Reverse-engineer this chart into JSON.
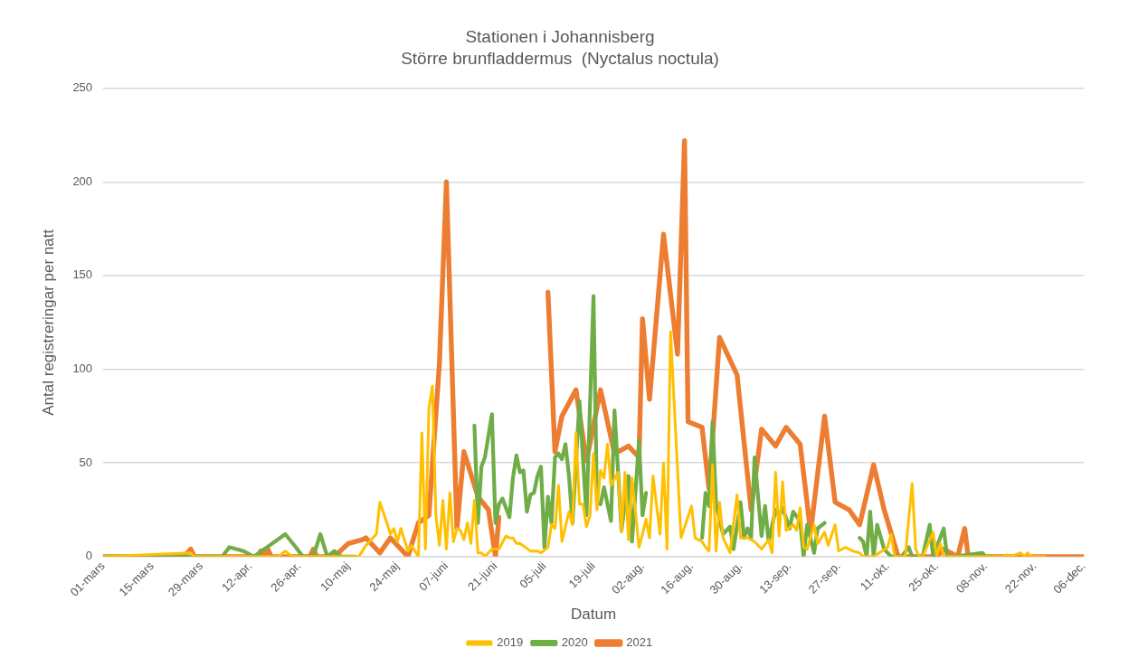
{
  "chart_data": {
    "type": "line",
    "title": "Stationen i Johannisberg",
    "subtitle": "Större brunfladdermus  (Nyctalus noctula)",
    "xlabel": "Datum",
    "ylabel": "Antal registreringar per natt",
    "xlim": [
      "--03-01",
      "--12-06"
    ],
    "ylim": [
      0,
      250
    ],
    "yticks": [
      0,
      50,
      100,
      150,
      200,
      250
    ],
    "xticks": [
      {
        "value": "--03-01",
        "label": "01-mars"
      },
      {
        "value": "--03-15",
        "label": "15-mars"
      },
      {
        "value": "--03-29",
        "label": "29-mars"
      },
      {
        "value": "--04-12",
        "label": "12-apr."
      },
      {
        "value": "--04-26",
        "label": "26-apr."
      },
      {
        "value": "--05-10",
        "label": "10-maj"
      },
      {
        "value": "--05-24",
        "label": "24-maj"
      },
      {
        "value": "--06-07",
        "label": "07-juni"
      },
      {
        "value": "--06-21",
        "label": "21-juni"
      },
      {
        "value": "--07-05",
        "label": "05-juli"
      },
      {
        "value": "--07-19",
        "label": "19-juli"
      },
      {
        "value": "--08-02",
        "label": "02-aug."
      },
      {
        "value": "--08-16",
        "label": "16-aug."
      },
      {
        "value": "--08-30",
        "label": "30-aug."
      },
      {
        "value": "--09-13",
        "label": "13-sep."
      },
      {
        "value": "--09-27",
        "label": "27-sep."
      },
      {
        "value": "--10-11",
        "label": "11-okt."
      },
      {
        "value": "--10-25",
        "label": "25-okt."
      },
      {
        "value": "--11-08",
        "label": "08-nov."
      },
      {
        "value": "--11-22",
        "label": "22-nov."
      },
      {
        "value": "--12-06",
        "label": "06-dec."
      }
    ],
    "grid": "y",
    "legend": "bottom",
    "marker": "none",
    "line_style": "solid",
    "series": [
      {
        "name": "2019",
        "color": "#ffc000",
        "x": [
          "--03-01",
          "--03-26",
          "--03-27",
          "--03-28",
          "--04-20",
          "--04-22",
          "--04-24",
          "--05-13",
          "--05-14",
          "--05-15",
          "--05-18",
          "--05-19",
          "--05-21",
          "--05-22",
          "--05-23",
          "--05-24",
          "--05-25",
          "--05-27",
          "--05-28",
          "--05-30",
          "--05-31",
          "--06-01",
          "--06-02",
          "--06-03",
          "--06-04",
          "--06-05",
          "--06-06",
          "--06-07",
          "--06-08",
          "--06-09",
          "--06-10",
          "--06-11",
          "--06-12",
          "--06-13",
          "--06-14",
          "--06-15",
          "--06-16",
          "--06-17",
          "--06-18",
          "--06-20",
          "--06-22",
          "--06-24",
          "--06-25",
          "--06-26",
          "--06-27",
          "--06-28",
          "--07-01",
          "--07-03",
          "--07-04",
          "--07-06",
          "--07-07",
          "--07-08",
          "--07-09",
          "--07-10",
          "--07-12",
          "--07-13",
          "--07-14",
          "--07-15",
          "--07-16",
          "--07-17",
          "--07-18",
          "--07-19",
          "--07-20",
          "--07-21",
          "--07-22",
          "--07-23",
          "--07-24",
          "--07-26",
          "--07-27",
          "--07-28",
          "--07-29",
          "--07-30",
          "--08-01",
          "--08-02",
          "--08-03",
          "--08-04",
          "--08-05",
          "--08-07",
          "--08-08",
          "--08-09",
          "--08-10",
          "--08-13",
          "--08-16",
          "--08-17",
          "--08-19",
          "--08-20",
          "--08-21",
          "--08-22",
          "--08-23",
          "--08-24",
          "--08-25",
          "--08-27",
          "--08-29",
          "--08-30",
          "--09-01",
          "--09-03",
          "--09-05",
          "--09-07",
          "--09-08",
          "--09-09",
          "--09-10",
          "--09-11",
          "--09-12",
          "--09-14",
          "--09-15",
          "--09-16",
          "--09-17",
          "--09-18",
          "--09-20",
          "--09-21",
          "--09-23",
          "--09-24",
          "--09-26",
          "--09-27",
          "--09-29",
          "--10-01",
          "--10-03",
          "--10-04",
          "--10-07",
          "--10-11",
          "--10-12",
          "--10-13",
          "--10-16",
          "--10-18",
          "--10-19",
          "--10-20",
          "--10-21",
          "--10-24",
          "--10-25",
          "--10-26",
          "--10-27",
          "--11-13",
          "--11-14",
          "--11-15",
          "--11-18",
          "--11-19",
          "--11-20",
          "--11-21",
          "--11-25"
        ],
        "values": [
          0,
          2,
          0,
          0,
          0,
          3,
          0,
          0,
          3,
          6,
          12,
          29,
          18,
          12,
          15,
          8,
          15,
          3,
          6,
          0,
          66,
          4,
          79,
          91,
          22,
          6,
          30,
          4,
          34,
          8,
          15,
          14,
          9,
          18,
          7,
          30,
          2,
          2,
          0,
          4,
          4,
          11,
          10,
          10,
          7,
          7,
          3,
          3,
          2,
          5,
          17,
          15,
          38,
          8,
          24,
          17,
          66,
          28,
          28,
          16,
          22,
          55,
          25,
          46,
          42,
          60,
          38,
          45,
          13,
          45,
          9,
          42,
          5,
          12,
          20,
          10,
          43,
          12,
          50,
          4,
          120,
          10,
          27,
          10,
          8,
          5,
          3,
          49,
          3,
          29,
          10,
          2,
          33,
          10,
          10,
          8,
          4,
          9,
          2,
          45,
          11,
          40,
          14,
          17,
          14,
          26,
          5,
          4,
          17,
          7,
          13,
          6,
          17,
          3,
          5,
          3,
          2,
          0,
          0,
          5,
          12,
          0,
          0,
          39,
          4,
          0,
          0,
          13,
          0,
          7,
          0,
          0,
          1,
          0,
          2,
          0,
          2,
          0,
          0
        ]
      },
      {
        "name": "2020",
        "color": "#70ad47",
        "x": [
          "--03-01",
          "--04-04",
          "--04-06",
          "--04-10",
          "--04-13",
          "--04-22",
          "--04-25",
          "--04-27",
          "--04-30",
          "--05-02",
          "--05-04",
          "--05-06",
          "--05-08",
          "--05-12",
          "--05-20",
          "--06-15",
          "--06-16",
          "--06-17",
          "--06-18",
          "--06-20",
          "--06-21",
          "--06-22",
          "--06-23",
          "--06-25",
          "--06-26",
          "--06-27",
          "--06-28",
          "--06-29",
          "--06-30",
          "--07-01",
          "--07-02",
          "--07-03",
          "--07-04",
          "--07-05",
          "--07-06",
          "--07-07",
          "--07-08",
          "--07-09",
          "--07-10",
          "--07-11",
          "--07-12",
          "--07-13",
          "--07-15",
          "--07-17",
          "--07-19",
          "--07-20",
          "--07-21",
          "--07-22",
          "--07-24",
          "--07-25",
          "--07-27",
          "--07-29",
          "--07-30",
          "--08-01",
          "--08-02",
          "--08-03",
          "--08-08",
          "--08-19",
          "--08-20",
          "--08-21",
          "--08-22",
          "--08-23",
          "--08-25",
          "--08-27",
          "--08-28",
          "--08-30",
          "--08-31",
          "--09-01",
          "--09-02",
          "--09-03",
          "--09-05",
          "--09-06",
          "--09-07",
          "--09-09",
          "--09-10",
          "--09-11",
          "--09-13",
          "--09-14",
          "--09-16",
          "--09-17",
          "--09-18",
          "--09-20",
          "--09-21",
          "--09-23",
          "--09-28",
          "--10-03",
          "--10-04",
          "--10-05",
          "--10-06",
          "--10-07",
          "--10-08",
          "--10-10",
          "--10-12",
          "--10-15",
          "--10-17",
          "--10-18",
          "--10-21",
          "--10-23",
          "--10-24",
          "--10-27",
          "--10-28",
          "--10-30",
          "--11-07",
          "--11-08",
          "--11-10"
        ],
        "values": [
          0,
          0,
          5,
          3,
          0,
          12,
          5,
          0,
          0,
          12,
          0,
          3,
          0,
          0,
          null,
          70,
          18,
          48,
          53,
          76,
          18,
          28,
          31,
          21,
          42,
          54,
          45,
          46,
          24,
          33,
          34,
          43,
          48,
          5,
          32,
          18,
          53,
          55,
          52,
          60,
          43,
          18,
          83,
          22,
          139,
          29,
          28,
          37,
          19,
          78,
          14,
          43,
          8,
          62,
          22,
          34,
          null,
          10,
          34,
          27,
          72,
          28,
          12,
          16,
          4,
          29,
          10,
          15,
          10,
          53,
          11,
          27,
          8,
          25,
          22,
          26,
          15,
          24,
          19,
          0,
          17,
          2,
          15,
          18,
          null,
          10,
          8,
          0,
          24,
          0,
          17,
          4,
          0,
          0,
          5,
          0,
          0,
          17,
          0,
          15,
          0,
          0,
          2,
          0,
          0
        ]
      },
      {
        "name": "2021",
        "color": "#ed7d31",
        "x": [
          "--03-01",
          "--03-24",
          "--03-26",
          "--03-27",
          "--04-14",
          "--04-15",
          "--04-16",
          "--04-17",
          "--04-18",
          "--04-29",
          "--04-30",
          "--05-01",
          "--05-06",
          "--05-10",
          "--05-14",
          "--05-15",
          "--05-19",
          "--05-22",
          "--05-27",
          "--05-30",
          "--06-02",
          "--06-05",
          "--06-07",
          "--06-10",
          "--06-12",
          "--06-16",
          "--06-19",
          "--06-21",
          "--06-22",
          "--06-30",
          "--07-06",
          "--07-08",
          "--07-10",
          "--07-14",
          "--07-17",
          "--07-21",
          "--07-25",
          "--07-29",
          "--08-01",
          "--08-02",
          "--08-04",
          "--08-08",
          "--08-12",
          "--08-14",
          "--08-15",
          "--08-19",
          "--08-21",
          "--08-24",
          "--08-29",
          "--09-02",
          "--09-05",
          "--09-09",
          "--09-12",
          "--09-16",
          "--09-19",
          "--09-23",
          "--09-26",
          "--09-30",
          "--10-03",
          "--10-07",
          "--10-10",
          "--10-14",
          "--10-25",
          "--10-27",
          "--10-31",
          "--11-02",
          "--11-03",
          "--12-06"
        ],
        "values": [
          0,
          0,
          4,
          0,
          0,
          3,
          0,
          4,
          0,
          0,
          4,
          0,
          0,
          7,
          9,
          10,
          2,
          10,
          0,
          18,
          22,
          103,
          200,
          15,
          56,
          32,
          25,
          0,
          21,
          null,
          141,
          56,
          75,
          89,
          51,
          89,
          55,
          59,
          53,
          127,
          84,
          172,
          108,
          222,
          72,
          69,
          36,
          117,
          97,
          25,
          68,
          59,
          69,
          60,
          13,
          75,
          29,
          25,
          17,
          49,
          25,
          0,
          0,
          4,
          0,
          15,
          0,
          0
        ]
      }
    ]
  }
}
